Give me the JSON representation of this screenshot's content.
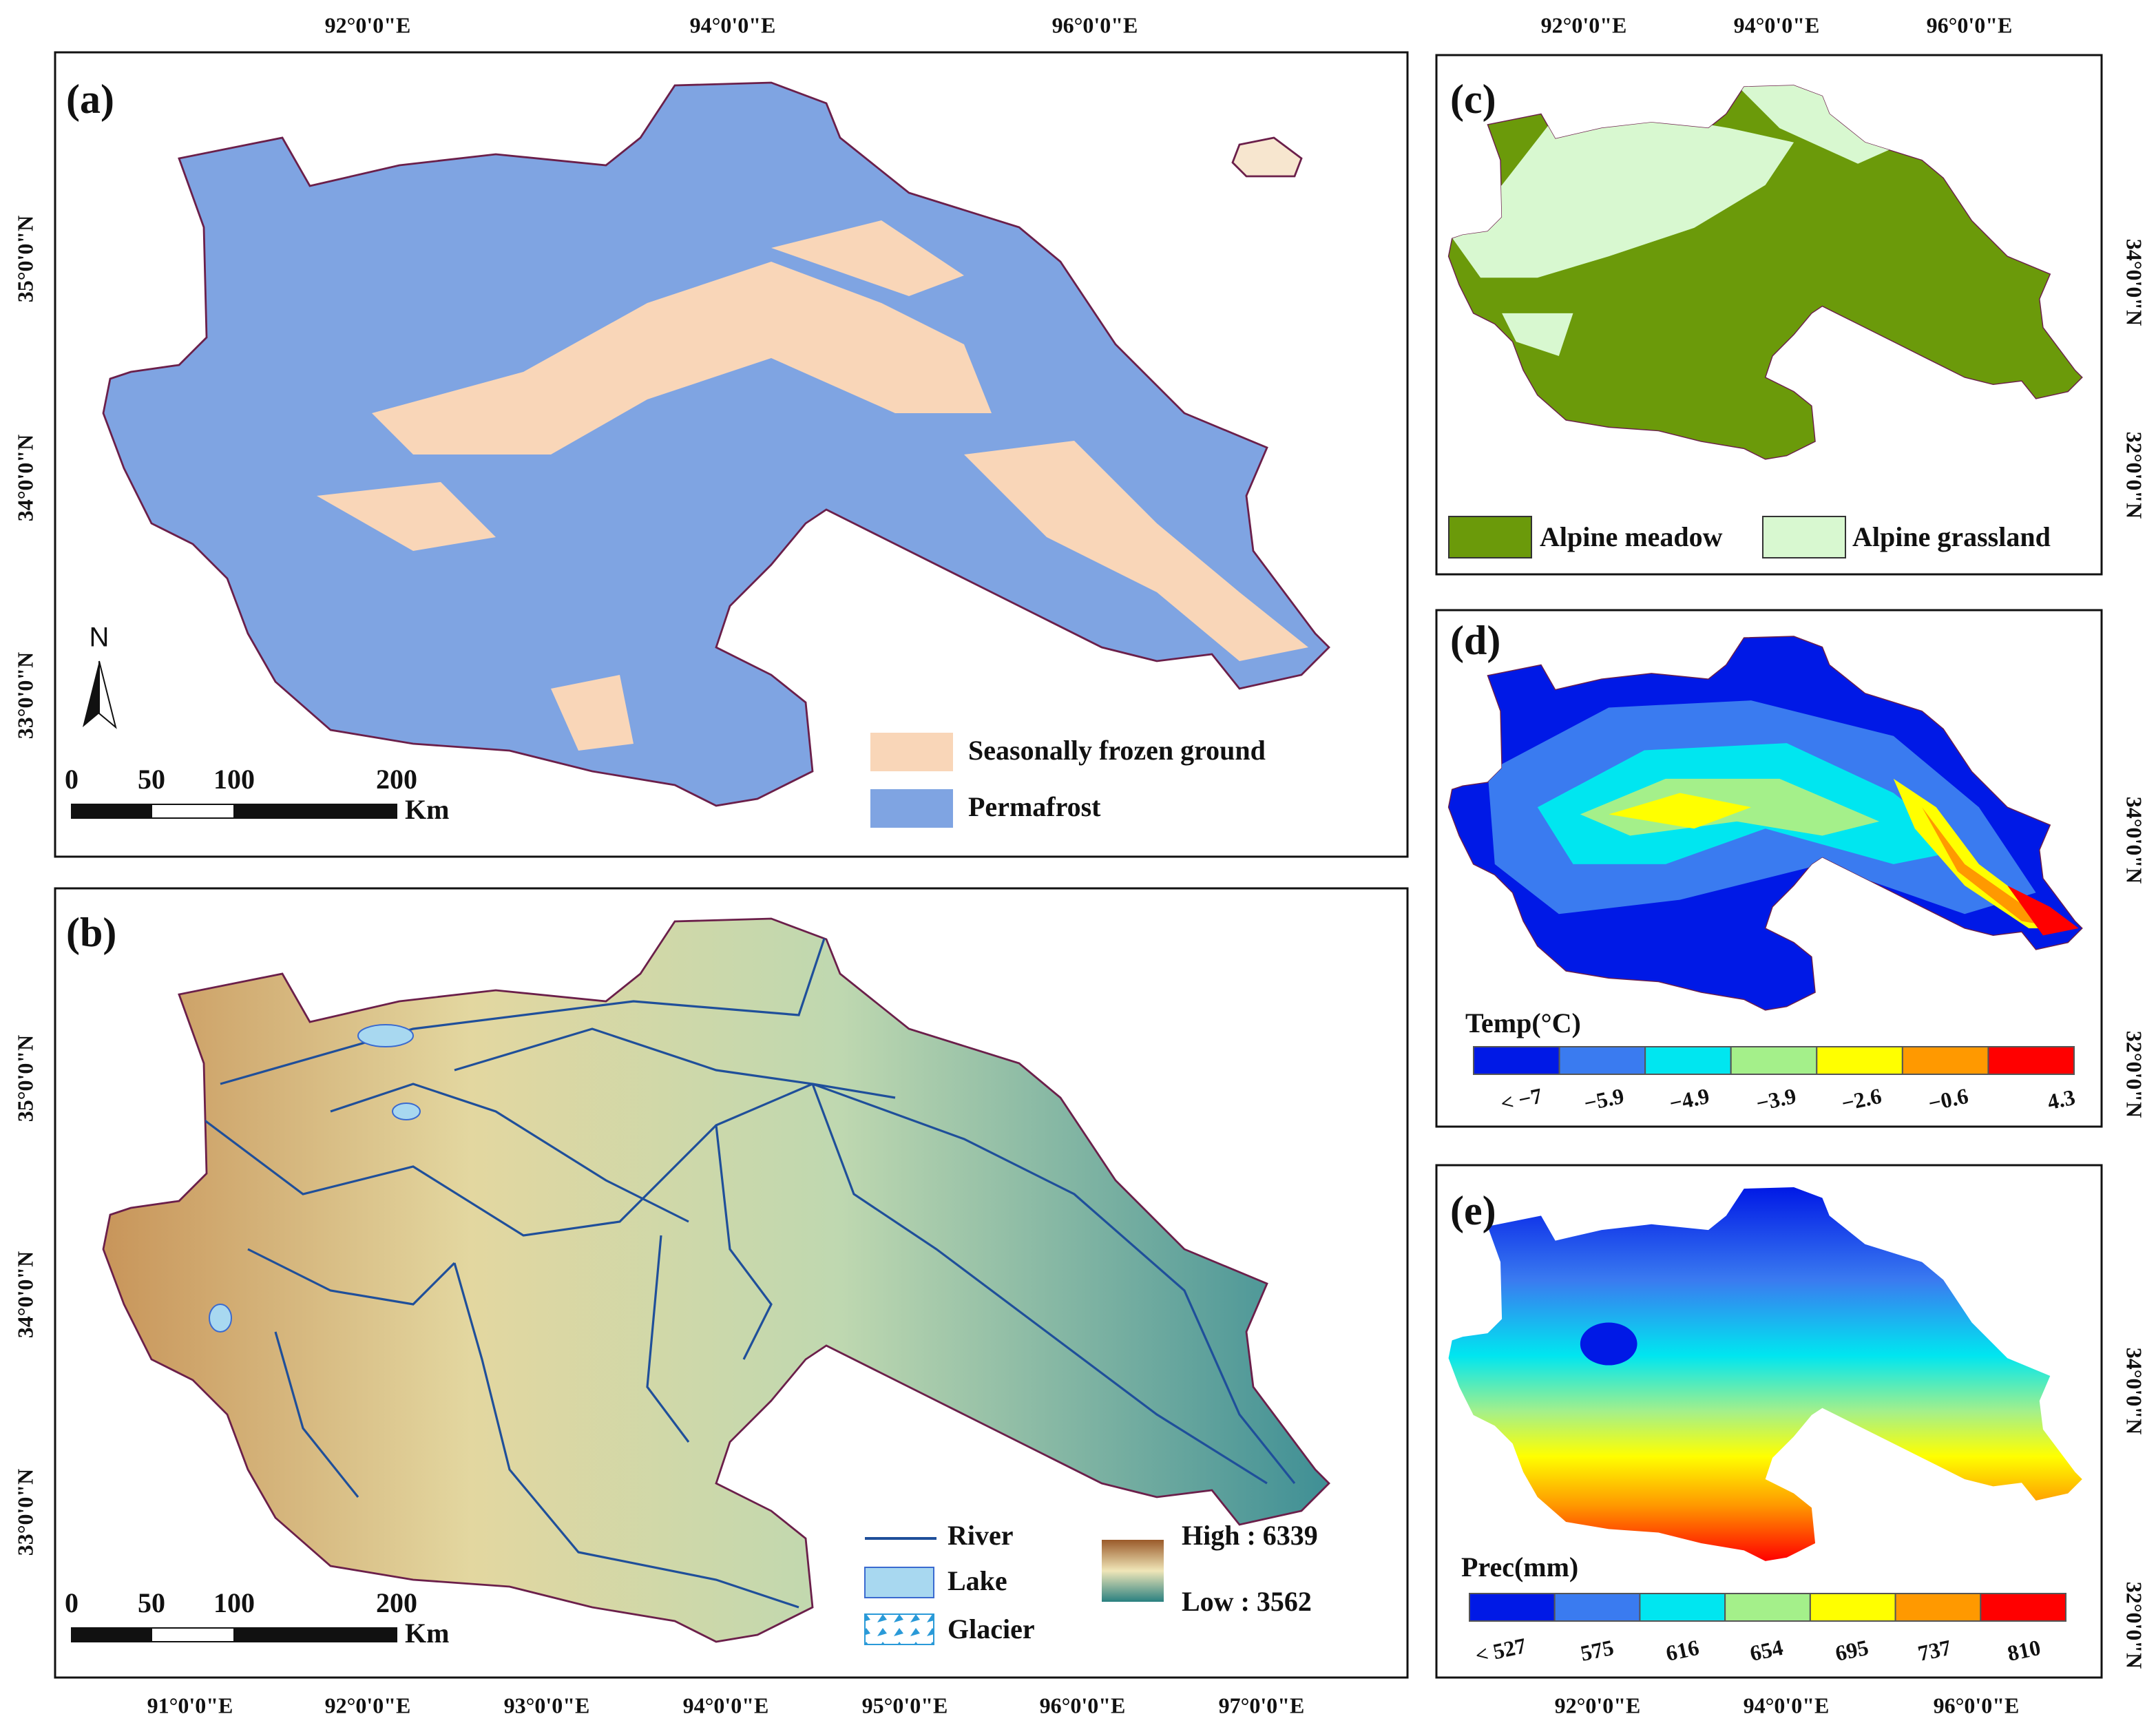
{
  "panels": {
    "a": {
      "label": "(a)",
      "top_axis": [
        "92°0'0\"E",
        "94°0'0\"E",
        "96°0'0\"E"
      ],
      "left_axis": [
        "35°0'0\"N",
        "34°0'0\"N",
        "33°0'0\"N"
      ],
      "legend": [
        "Seasonally frozen ground",
        "Permafrost"
      ],
      "north": "N",
      "scale_bar": {
        "labels": [
          "0",
          "50",
          "100",
          "200"
        ],
        "unit": "Km"
      }
    },
    "b": {
      "label": "(b)",
      "bottom_axis": [
        "91°0'0\"E",
        "92°0'0\"E",
        "93°0'0\"E",
        "94°0'0\"E",
        "95°0'0\"E",
        "96°0'0\"E",
        "97°0'0\"E"
      ],
      "left_axis": [
        "35°0'0\"N",
        "34°0'0\"N",
        "33°0'0\"N"
      ],
      "legend": [
        "River",
        "Lake",
        "Glacier"
      ],
      "elevation": {
        "high": "High : 6339",
        "low": "Low : 3562"
      },
      "scale_bar": {
        "labels": [
          "0",
          "50",
          "100",
          "200"
        ],
        "unit": "Km"
      }
    },
    "c": {
      "label": "(c)",
      "top_axis": [
        "92°0'0\"E",
        "94°0'0\"E",
        "96°0'0\"E"
      ],
      "right_axis": [
        "34°0'0\"N",
        "32°0'0\"N"
      ],
      "legend": [
        "Alpine meadow",
        "Alpine grassland"
      ]
    },
    "d": {
      "label": "(d)",
      "right_axis": [
        "34°0'0\"N",
        "32°0'0\"N"
      ],
      "colorbar_title": "Temp(°C)",
      "colorbar_labels": [
        "< −7",
        "−5.9",
        "−4.9",
        "−3.9",
        "−2.6",
        "−0.6",
        "4.3"
      ]
    },
    "e": {
      "label": "(e)",
      "bottom_axis": [
        "92°0'0\"E",
        "94°0'0\"E",
        "96°0'0\"E"
      ],
      "right_axis": [
        "34°0'0\"N",
        "32°0'0\"N"
      ],
      "colorbar_title": "Prec(mm)",
      "colorbar_labels": [
        "< 527",
        "575",
        "616",
        "654",
        "695",
        "737",
        "810"
      ]
    }
  }
}
